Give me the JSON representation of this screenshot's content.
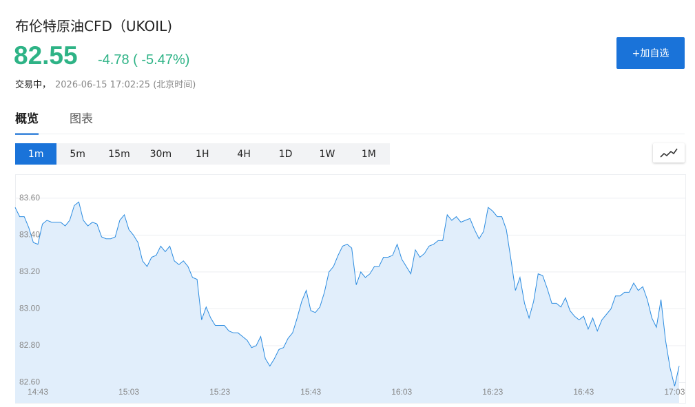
{
  "header": {
    "title": "布伦特原油CFD（UKOIL)",
    "price": "82.55",
    "change": "-4.78 ( -5.47%)",
    "status": "交易中，",
    "time": "2026-06-15 17:02:25",
    "timezone": "(北京时间)",
    "button": "+加自选"
  },
  "tabs": [
    "概览",
    "图表"
  ],
  "intervals": [
    "1m",
    "5m",
    "15m",
    "30m",
    "1H",
    "4H",
    "1D",
    "1W",
    "1M"
  ],
  "chart_data": {
    "type": "area",
    "color": "#2a8be0",
    "fill": "#e1eefb",
    "grid": true,
    "ylim": [
      82.49,
      83.73
    ],
    "yticks": [
      {
        "value": 82.6,
        "label": "82.60"
      },
      {
        "value": 82.8,
        "label": "82.80"
      },
      {
        "value": 83.0,
        "label": "83.00"
      },
      {
        "value": 83.2,
        "label": "83.20"
      },
      {
        "value": 83.4,
        "label": "83.40"
      },
      {
        "value": 83.6,
        "label": "83.60"
      }
    ],
    "categories": [
      null,
      null,
      null,
      null,
      null,
      "14:43",
      null,
      null,
      null,
      null,
      null,
      null,
      null,
      null,
      null,
      null,
      null,
      null,
      null,
      null,
      null,
      null,
      null,
      null,
      null,
      "15:03",
      null,
      null,
      null,
      null,
      null,
      null,
      null,
      null,
      null,
      null,
      null,
      null,
      null,
      null,
      null,
      null,
      null,
      null,
      null,
      "15:23",
      null,
      null,
      null,
      null,
      null,
      null,
      null,
      null,
      null,
      null,
      null,
      null,
      null,
      null,
      null,
      null,
      null,
      null,
      null,
      "15:43",
      null,
      null,
      null,
      null,
      null,
      null,
      null,
      null,
      null,
      null,
      null,
      null,
      null,
      null,
      null,
      null,
      null,
      null,
      null,
      "16:03",
      null,
      null,
      null,
      null,
      null,
      null,
      null,
      null,
      null,
      null,
      null,
      null,
      null,
      null,
      null,
      null,
      null,
      null,
      null,
      "16:23",
      null,
      null,
      null,
      null,
      null,
      null,
      null,
      null,
      null,
      null,
      null,
      null,
      null,
      null,
      null,
      null,
      null,
      null,
      null,
      "16:43",
      null,
      null,
      null,
      null,
      null,
      null,
      null,
      null,
      null,
      null,
      null,
      null,
      null,
      null,
      null,
      null,
      null,
      null,
      null,
      "17:03",
      null
    ],
    "values": [
      83.55,
      83.5,
      83.5,
      83.44,
      83.36,
      83.35,
      83.46,
      83.48,
      83.47,
      83.47,
      83.47,
      83.45,
      83.48,
      83.56,
      83.58,
      83.48,
      83.45,
      83.47,
      83.46,
      83.39,
      83.38,
      83.38,
      83.39,
      83.48,
      83.51,
      83.43,
      83.4,
      83.36,
      83.26,
      83.23,
      83.28,
      83.29,
      83.34,
      83.31,
      83.34,
      83.26,
      83.24,
      83.26,
      83.23,
      83.17,
      83.16,
      82.94,
      83.01,
      82.95,
      82.91,
      82.91,
      82.91,
      82.88,
      82.87,
      82.87,
      82.85,
      82.83,
      82.79,
      82.8,
      82.85,
      82.73,
      82.69,
      82.73,
      82.78,
      82.79,
      82.84,
      82.87,
      82.95,
      83.04,
      83.1,
      82.99,
      82.98,
      83.01,
      83.09,
      83.2,
      83.23,
      83.29,
      83.34,
      83.35,
      83.33,
      83.13,
      83.2,
      83.17,
      83.19,
      83.23,
      83.23,
      83.28,
      83.28,
      83.29,
      83.35,
      83.27,
      83.23,
      83.19,
      83.32,
      83.28,
      83.3,
      83.34,
      83.35,
      83.37,
      83.37,
      83.51,
      83.48,
      83.5,
      83.47,
      83.48,
      83.49,
      83.43,
      83.38,
      83.42,
      83.55,
      83.53,
      83.5,
      83.5,
      83.43,
      83.27,
      83.1,
      83.17,
      83.03,
      82.95,
      83.04,
      83.19,
      83.18,
      83.11,
      83.03,
      83.03,
      83.01,
      83.06,
      82.99,
      82.96,
      82.94,
      82.96,
      82.89,
      82.95,
      82.88,
      82.94,
      82.97,
      83.0,
      83.07,
      83.07,
      83.09,
      83.09,
      83.14,
      83.1,
      83.12,
      83.05,
      82.95,
      82.9,
      83.05,
      82.83,
      82.68,
      82.58,
      82.69
    ]
  }
}
